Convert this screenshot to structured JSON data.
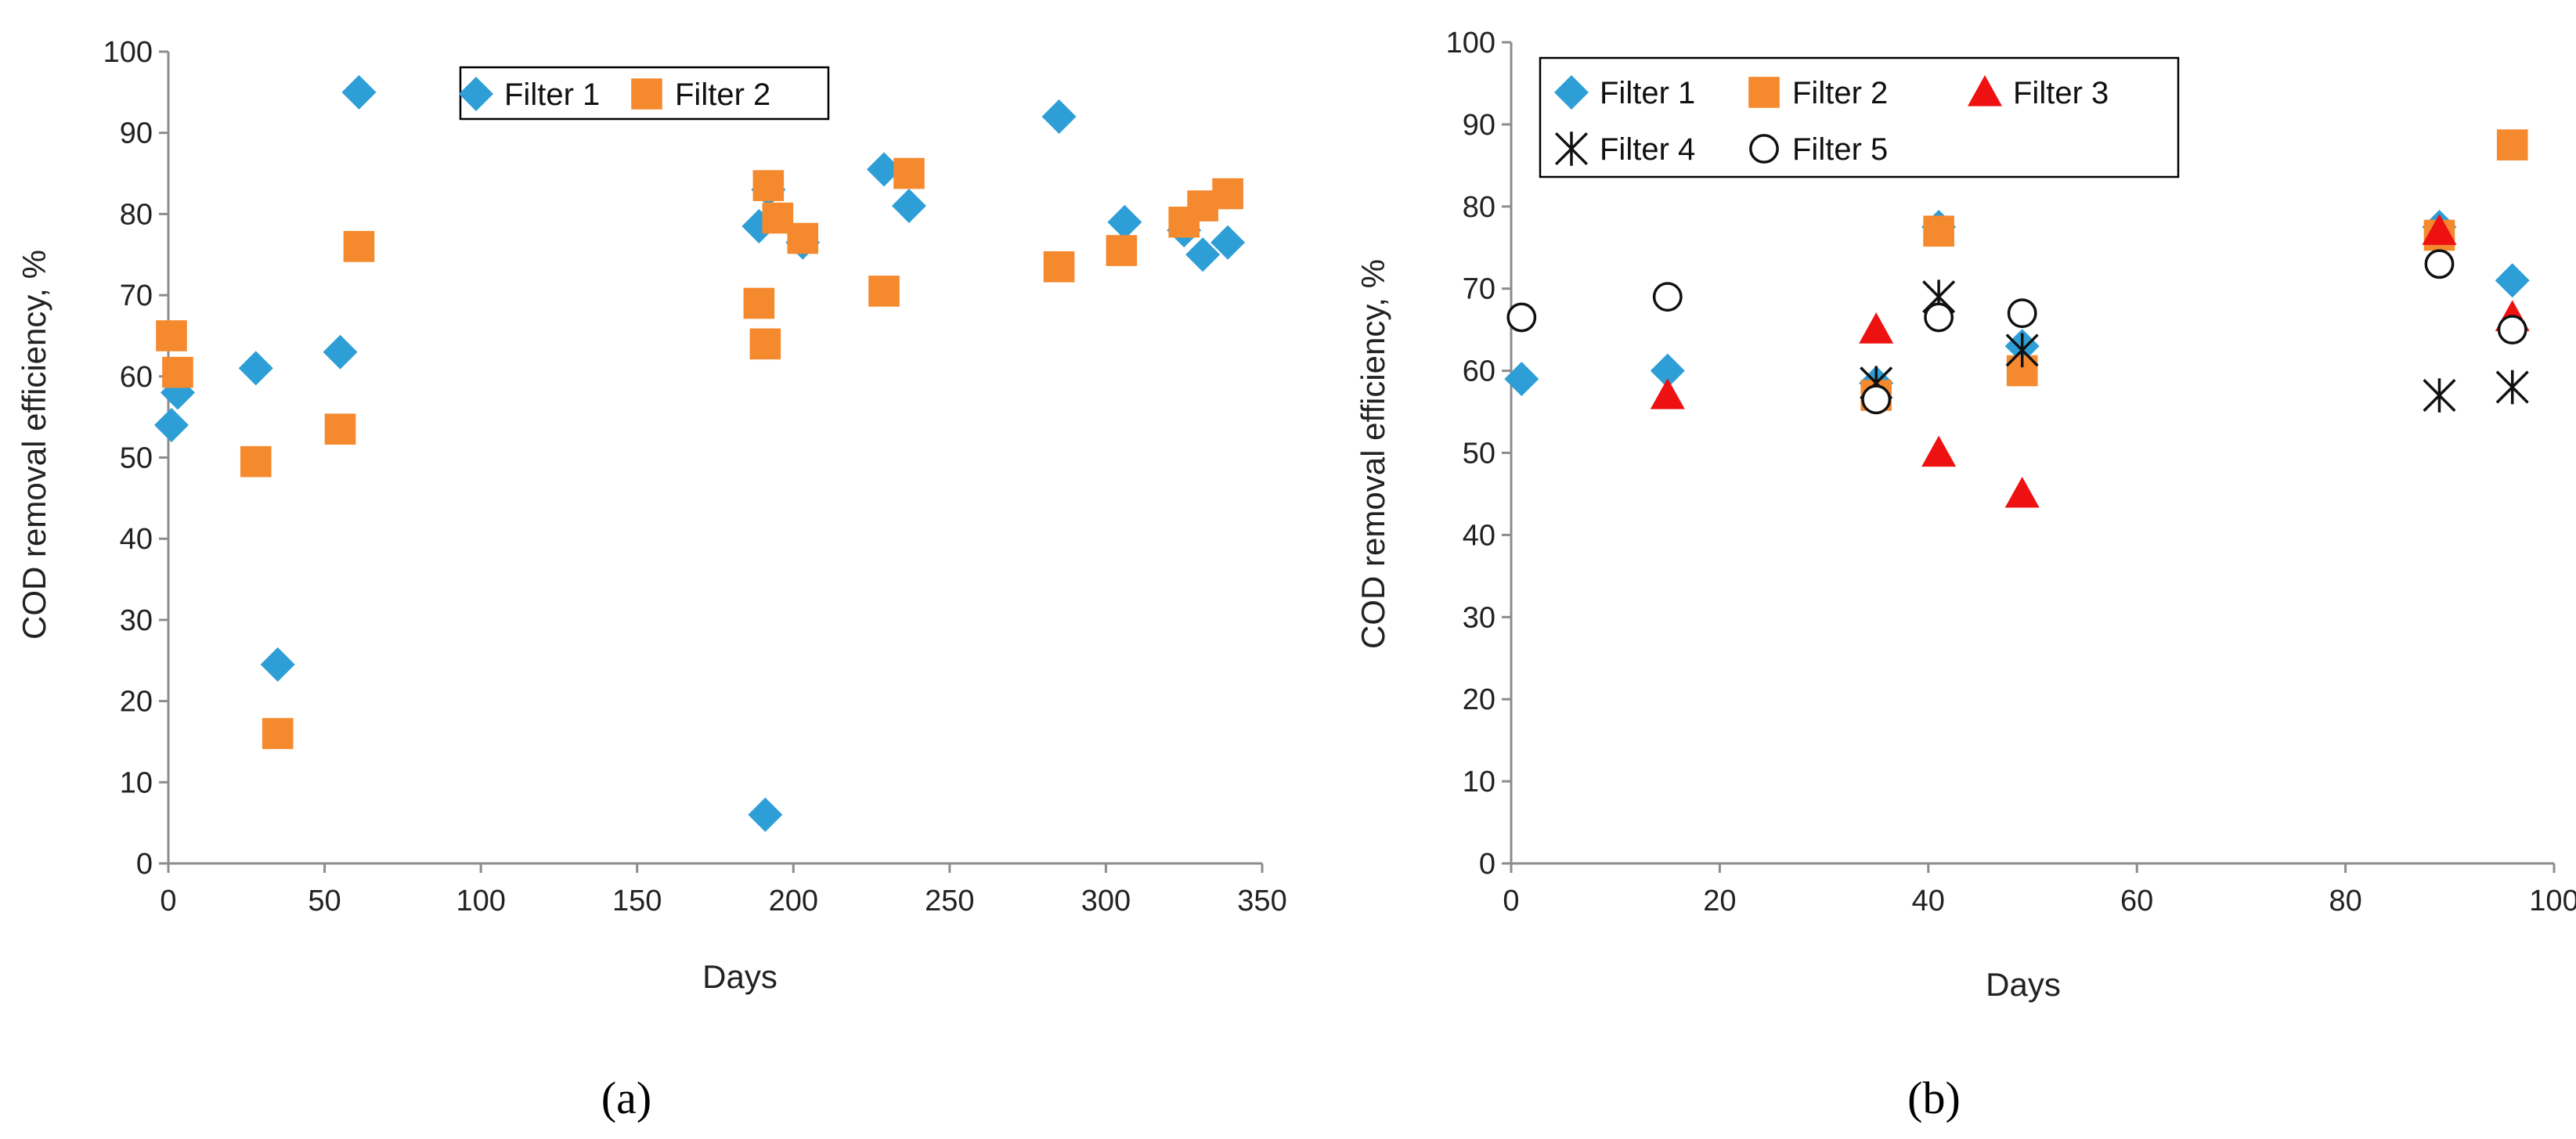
{
  "chart_data": [
    {
      "type": "scatter",
      "panel_label": "(a)",
      "xlabel": "Days",
      "ylabel": "COD removal efficiency, %",
      "xlim": [
        0,
        350
      ],
      "ylim": [
        0,
        100
      ],
      "xticks": [
        0,
        50,
        100,
        150,
        200,
        250,
        300,
        350
      ],
      "yticks": [
        0,
        10,
        20,
        30,
        40,
        50,
        60,
        70,
        80,
        90,
        100
      ],
      "legend_position": "top-center",
      "series": [
        {
          "name": "Filter 1",
          "marker": "diamond",
          "color": "#2E9FD6",
          "points": [
            [
              1,
              54
            ],
            [
              3,
              58
            ],
            [
              28,
              61
            ],
            [
              35,
              24.5
            ],
            [
              55,
              63
            ],
            [
              61,
              95
            ],
            [
              189,
              78.5
            ],
            [
              191,
              6
            ],
            [
              192,
              83
            ],
            [
              203,
              76.5
            ],
            [
              229,
              85.5
            ],
            [
              237,
              81
            ],
            [
              285,
              92
            ],
            [
              306,
              79
            ],
            [
              325,
              78
            ],
            [
              331,
              75
            ],
            [
              339,
              76.5
            ]
          ]
        },
        {
          "name": "Filter 2",
          "marker": "square",
          "color": "#F5892E",
          "points": [
            [
              1,
              65
            ],
            [
              3,
              60.5
            ],
            [
              28,
              49.5
            ],
            [
              35,
              16
            ],
            [
              55,
              53.5
            ],
            [
              61,
              76
            ],
            [
              189,
              69
            ],
            [
              191,
              64
            ],
            [
              192,
              83.5
            ],
            [
              195,
              79.5
            ],
            [
              203,
              77
            ],
            [
              229,
              70.5
            ],
            [
              237,
              85
            ],
            [
              285,
              73.5
            ],
            [
              305,
              75.5
            ],
            [
              325,
              79
            ],
            [
              331,
              81
            ],
            [
              339,
              82.5
            ]
          ]
        }
      ]
    },
    {
      "type": "scatter",
      "panel_label": "(b)",
      "xlabel": "Days",
      "ylabel": "COD removal efficiency, %",
      "xlim": [
        0,
        100
      ],
      "ylim": [
        0,
        100
      ],
      "xticks": [
        0,
        20,
        40,
        60,
        80,
        100
      ],
      "yticks": [
        0,
        10,
        20,
        30,
        40,
        50,
        60,
        70,
        80,
        90,
        100
      ],
      "legend_position": "top-left",
      "series": [
        {
          "name": "Filter 1",
          "marker": "diamond",
          "color": "#2E9FD6",
          "points": [
            [
              1,
              59
            ],
            [
              15,
              60
            ],
            [
              35,
              58.5
            ],
            [
              41,
              77.5
            ],
            [
              49,
              63
            ],
            [
              89,
              77.5
            ],
            [
              96,
              71
            ]
          ]
        },
        {
          "name": "Filter 2",
          "marker": "square",
          "color": "#F5892E",
          "points": [
            [
              35,
              57
            ],
            [
              41,
              77
            ],
            [
              49,
              60
            ],
            [
              89,
              76.5
            ],
            [
              96,
              87.5
            ]
          ]
        },
        {
          "name": "Filter 3",
          "marker": "triangle",
          "color": "#EE1111",
          "points": [
            [
              15,
              57
            ],
            [
              35,
              65
            ],
            [
              41,
              50
            ],
            [
              49,
              45
            ],
            [
              89,
              77
            ],
            [
              96,
              66.5
            ]
          ]
        },
        {
          "name": "Filter 4",
          "marker": "asterisk",
          "color": "#111111",
          "points": [
            [
              35,
              58.5
            ],
            [
              41,
              69
            ],
            [
              49,
              62.5
            ],
            [
              89,
              57
            ],
            [
              96,
              58
            ]
          ]
        },
        {
          "name": "Filter 5",
          "marker": "circle",
          "color": "#111111",
          "points": [
            [
              1,
              66.5
            ],
            [
              15,
              69
            ],
            [
              35,
              56.5
            ],
            [
              41,
              66.5
            ],
            [
              49,
              67
            ],
            [
              89,
              73
            ],
            [
              96,
              65
            ]
          ]
        }
      ]
    }
  ]
}
